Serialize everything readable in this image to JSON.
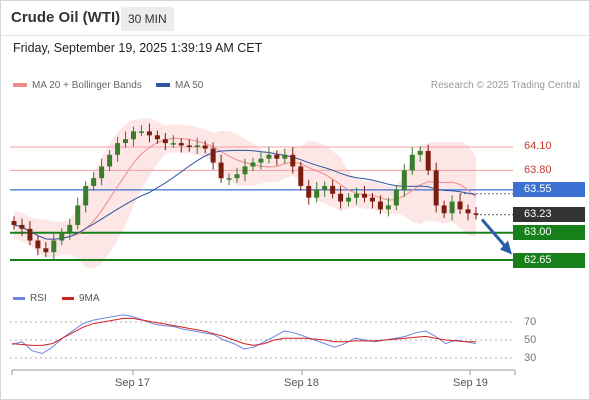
{
  "header": {
    "instrument": "Crude Oil (WTI)",
    "timeframe": "30 MIN",
    "datetime": "Friday, September 19, 2025 1:39:19 AM CET"
  },
  "legend": {
    "ma20_label": "MA 20 + Bollinger Bands",
    "ma50_label": "MA 50",
    "credit": "Research © 2025 Trading Central"
  },
  "levels": {
    "resistance_2": "64.10",
    "resistance_1": "63.80",
    "pivot": "63.55",
    "last_price": "63.23",
    "support_1": "63.00",
    "support_2": "62.65"
  },
  "rsi_panel": {
    "rsi_label": "RSI",
    "ma_label": "9MA",
    "ticks": [
      "70",
      "50",
      "30"
    ]
  },
  "x_axis": {
    "labels": [
      "Sep 17",
      "Sep 18",
      "Sep 19"
    ]
  },
  "colors": {
    "up_candle": "#3a7d2c",
    "down_candle": "#7a1e10",
    "ma20": "#f28a8a",
    "bollinger_fill": "#fde3e3",
    "ma50": "#2f55a4",
    "pivot": "#3b6fd1",
    "support": "#17801a",
    "resistance": "#f2a1a1",
    "last_price": "#333333",
    "arrow": "#2a5ea8",
    "rsi": "#6f86e0",
    "rsi_ma": "#d32020"
  },
  "chart_data": {
    "type": "candlestick",
    "title": "Crude Oil (WTI)",
    "timeframe": "30 MIN",
    "y_visible_levels": [
      62.65,
      63.0,
      63.23,
      63.55,
      63.8,
      64.1
    ],
    "x_labels": [
      "Sep 17",
      "Sep 18",
      "Sep 19"
    ],
    "close_series": [
      63.1,
      63.05,
      62.9,
      62.8,
      62.75,
      62.9,
      63.0,
      63.1,
      63.35,
      63.6,
      63.7,
      63.85,
      64.0,
      64.15,
      64.2,
      64.3,
      64.3,
      64.25,
      64.2,
      64.15,
      64.15,
      64.12,
      64.1,
      64.12,
      64.08,
      63.9,
      63.7,
      63.7,
      63.75,
      63.85,
      63.9,
      63.95,
      64.0,
      63.95,
      64.0,
      63.85,
      63.6,
      63.45,
      63.55,
      63.6,
      63.5,
      63.4,
      63.45,
      63.5,
      63.45,
      63.4,
      63.3,
      63.35,
      63.55,
      63.8,
      64.0,
      64.05,
      63.8,
      63.35,
      63.25,
      63.4,
      63.3,
      63.25,
      63.23
    ],
    "rsi": {
      "values": [
        45,
        48,
        38,
        35,
        42,
        52,
        60,
        68,
        72,
        74,
        76,
        78,
        76,
        72,
        68,
        66,
        65,
        62,
        60,
        58,
        56,
        50,
        46,
        40,
        42,
        48,
        54,
        60,
        58,
        54,
        50,
        46,
        42,
        46,
        52,
        50,
        48,
        50,
        52,
        54,
        58,
        60,
        54,
        46,
        50,
        48,
        46
      ],
      "ma9": [
        46,
        45,
        44,
        44,
        46,
        52,
        58,
        64,
        68,
        70,
        72,
        74,
        74,
        72,
        70,
        68,
        66,
        64,
        62,
        60,
        57,
        54,
        50,
        46,
        44,
        46,
        50,
        52,
        52,
        52,
        51,
        50,
        48,
        48,
        49,
        49,
        49,
        50,
        51,
        52,
        53,
        54,
        52,
        50,
        49,
        48,
        48
      ],
      "levels": [
        70,
        50,
        30
      ]
    }
  }
}
